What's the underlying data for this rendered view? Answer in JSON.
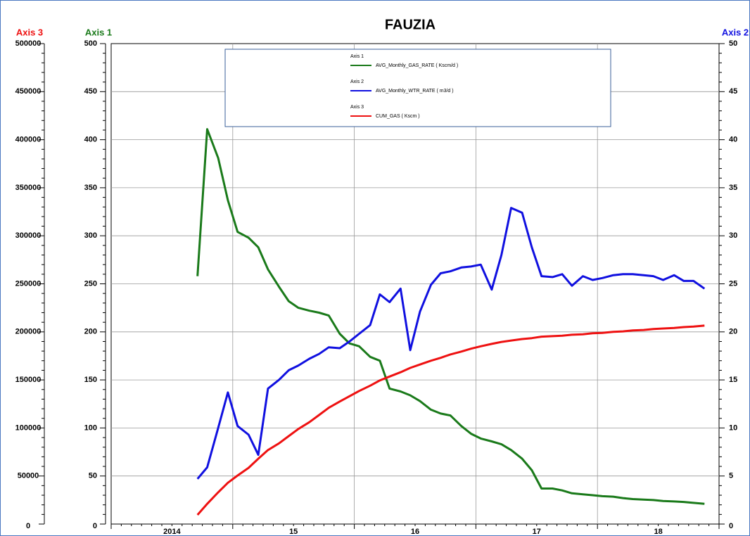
{
  "chart_data": {
    "type": "line",
    "title": "FAUZIA",
    "axis_titles": {
      "y": "Axis 1",
      "y2": "Axis 2",
      "y3": "Axis 3"
    },
    "x": [
      2014.71,
      2014.79,
      2014.88,
      2014.96,
      2015.04,
      2015.13,
      2015.21,
      2015.29,
      2015.38,
      2015.46,
      2015.54,
      2015.63,
      2015.71,
      2015.79,
      2015.88,
      2015.96,
      2016.04,
      2016.13,
      2016.21,
      2016.29,
      2016.38,
      2016.46,
      2016.54,
      2016.63,
      2016.71,
      2016.79,
      2016.88,
      2016.96,
      2017.04,
      2017.13,
      2017.21,
      2017.29,
      2017.38,
      2017.46,
      2017.54,
      2017.63,
      2017.71,
      2017.79,
      2017.88,
      2017.96,
      2018.04,
      2018.13,
      2018.21,
      2018.29,
      2018.38,
      2018.46,
      2018.54,
      2018.63,
      2018.71,
      2018.79,
      2018.88
    ],
    "xlim": [
      2014,
      2019
    ],
    "xticks": [
      2014,
      2015,
      2016,
      2017,
      2018,
      2019
    ],
    "x_labels": [
      {
        "value": 2014.5,
        "label": "2014"
      },
      {
        "value": 2015.5,
        "label": "15"
      },
      {
        "value": 2016.5,
        "label": "16"
      },
      {
        "value": 2017.5,
        "label": "17"
      },
      {
        "value": 2018.5,
        "label": "18"
      }
    ],
    "ylim": [
      0,
      500
    ],
    "yticks": [
      0,
      50,
      100,
      150,
      200,
      250,
      300,
      350,
      400,
      450,
      500
    ],
    "y2lim": [
      0,
      50
    ],
    "y2ticks": [
      0,
      5,
      10,
      15,
      20,
      25,
      30,
      35,
      40,
      45,
      50
    ],
    "y3lim": [
      0,
      500000
    ],
    "y3ticks": [
      0,
      50000,
      100000,
      150000,
      200000,
      250000,
      300000,
      350000,
      400000,
      450000,
      500000
    ],
    "grid": true,
    "series": [
      {
        "name": "AVG_Monthly_GAS_RATE ( Kscm/d )",
        "color": "#1a7a1a",
        "axis": "y",
        "values": [
          258,
          411,
          381,
          337,
          304,
          298,
          288,
          265,
          247,
          232,
          225,
          222,
          220,
          217,
          198,
          188,
          185,
          174,
          170,
          141,
          138,
          134,
          128,
          119,
          115,
          113,
          102,
          94,
          89,
          86,
          83,
          77,
          68,
          56,
          37,
          37,
          35,
          32,
          31,
          30,
          29,
          28.5,
          27,
          26,
          25.5,
          25,
          24,
          23.5,
          23,
          22,
          21
        ]
      },
      {
        "name": "AVG_Monthly_WTR_RATE ( m3/d )",
        "color": "#1010e0",
        "axis": "y2",
        "values": [
          4.7,
          5.9,
          10.0,
          13.7,
          10.2,
          9.3,
          7.2,
          14.1,
          15.0,
          16.0,
          16.5,
          17.2,
          17.7,
          18.4,
          18.3,
          19.0,
          19.8,
          20.7,
          23.9,
          23.1,
          24.5,
          18.1,
          22.1,
          24.9,
          26.1,
          26.3,
          26.7,
          26.8,
          27.0,
          24.4,
          28.0,
          32.9,
          32.4,
          28.8,
          25.8,
          25.7,
          26.0,
          24.8,
          25.8,
          25.4,
          25.6,
          25.9,
          26.0,
          26.0,
          25.9,
          25.8,
          25.4,
          25.9,
          25.3,
          25.3,
          24.5
        ]
      },
      {
        "name": "CUM_GAS ( Kscm )",
        "color": "#ee1111",
        "axis": "y3",
        "values": [
          9500,
          21000,
          33000,
          43000,
          50500,
          58500,
          68000,
          77000,
          84000,
          91500,
          99000,
          106000,
          113500,
          121000,
          127500,
          133000,
          138500,
          144000,
          149500,
          153500,
          158000,
          162500,
          166000,
          170000,
          173000,
          176500,
          179500,
          182500,
          185000,
          187500,
          189500,
          191000,
          192500,
          193500,
          195000,
          195500,
          196000,
          197000,
          197500,
          198500,
          199000,
          200000,
          200500,
          201500,
          202000,
          203000,
          203500,
          204000,
          205000,
          205500,
          206500
        ]
      }
    ]
  }
}
